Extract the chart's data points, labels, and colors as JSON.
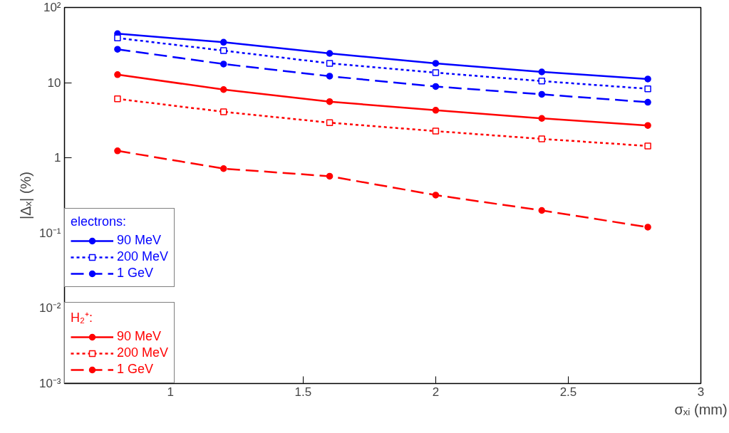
{
  "chart_data": {
    "type": "line",
    "xlabel": "σₓᵢ (mm)",
    "ylabel": "|Δₓ| (%)",
    "log": "y",
    "grid": false,
    "legend": "bottom left",
    "legend_title": [
      "electrons:",
      "H₂⁺:"
    ],
    "xlim": [
      0.6,
      3.0
    ],
    "xticks": [
      1,
      1.5,
      2,
      2.5,
      3
    ],
    "ylim": [
      0.001,
      100
    ],
    "yticks": [
      {
        "value": 0.001,
        "label": "10⁻³"
      },
      {
        "value": 0.01,
        "label": "10⁻²"
      },
      {
        "value": 0.1,
        "label": "10⁻¹"
      },
      1,
      10,
      {
        "value": 100,
        "label": "10²"
      }
    ],
    "x": [
      0.8,
      1.2,
      1.6,
      2.0,
      2.4,
      2.8
    ],
    "series": [
      {
        "name": "90 MeV",
        "color": "#0000ff",
        "marker": "circle",
        "line_style": "solid",
        "values": [
          44.8,
          34.5,
          24.5,
          18.1,
          13.9,
          11.2
        ]
      },
      {
        "name": "200 MeV",
        "color": "#0000ff",
        "marker": "square",
        "line_style": "dotted",
        "values": [
          39.3,
          26.7,
          18.1,
          13.6,
          10.5,
          8.3
        ]
      },
      {
        "name": "1 GeV",
        "color": "#0000ff",
        "marker": "circle",
        "line_style": "dashed",
        "values": [
          27.8,
          17.7,
          12.2,
          8.9,
          7.0,
          5.5
        ]
      },
      {
        "name": "90 MeV",
        "color": "#ff0000",
        "marker": "circle",
        "line_style": "solid",
        "values": [
          12.8,
          8.1,
          5.6,
          4.3,
          3.35,
          2.7
        ]
      },
      {
        "name": "200 MeV",
        "color": "#ff0000",
        "marker": "square",
        "line_style": "dotted",
        "values": [
          6.1,
          4.1,
          2.94,
          2.27,
          1.79,
          1.44
        ]
      },
      {
        "name": "1 GeV",
        "color": "#ff0000",
        "marker": "circle",
        "line_style": "dashed",
        "values": [
          1.24,
          0.72,
          0.57,
          0.32,
          0.2,
          0.12
        ]
      }
    ]
  }
}
